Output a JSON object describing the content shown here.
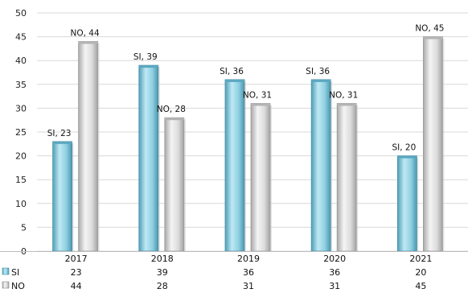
{
  "chart_data": {
    "type": "bar",
    "categories": [
      "2017",
      "2018",
      "2019",
      "2020",
      "2021"
    ],
    "series": [
      {
        "name": "SI",
        "values": [
          23,
          39,
          36,
          36,
          20
        ],
        "color": "#7cc3d6"
      },
      {
        "name": "NO",
        "values": [
          44,
          28,
          31,
          31,
          45
        ],
        "color": "#d8d8d8"
      }
    ],
    "ylim": [
      0,
      50
    ],
    "yticks": [
      0,
      5,
      10,
      15,
      20,
      25,
      30,
      35,
      40,
      45,
      50
    ],
    "data_label_format": "{series}, {value}",
    "data_table": true,
    "grid": true,
    "legend": "data-table"
  }
}
